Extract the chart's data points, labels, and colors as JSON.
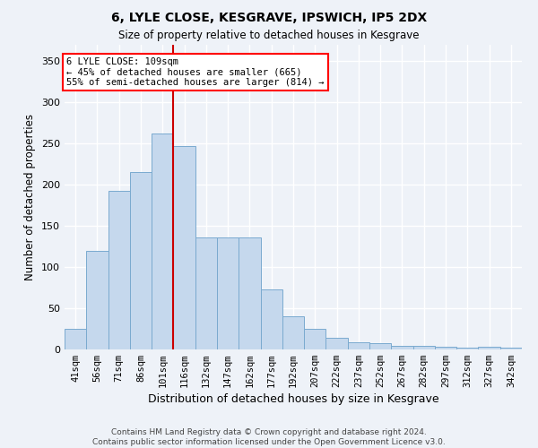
{
  "title1": "6, LYLE CLOSE, KESGRAVE, IPSWICH, IP5 2DX",
  "title2": "Size of property relative to detached houses in Kesgrave",
  "xlabel": "Distribution of detached houses by size in Kesgrave",
  "ylabel": "Number of detached properties",
  "categories": [
    "41sqm",
    "56sqm",
    "71sqm",
    "86sqm",
    "101sqm",
    "116sqm",
    "132sqm",
    "147sqm",
    "162sqm",
    "177sqm",
    "192sqm",
    "207sqm",
    "222sqm",
    "237sqm",
    "252sqm",
    "267sqm",
    "282sqm",
    "297sqm",
    "312sqm",
    "327sqm",
    "342sqm"
  ],
  "values": [
    25,
    120,
    193,
    215,
    262,
    247,
    136,
    136,
    136,
    73,
    40,
    25,
    14,
    9,
    8,
    4,
    4,
    3,
    2,
    3,
    2
  ],
  "bar_color": "#c5d8ed",
  "bar_edge_color": "#7aaacf",
  "annotation_box_text": "6 LYLE CLOSE: 109sqm\n← 45% of detached houses are smaller (665)\n55% of semi-detached houses are larger (814) →",
  "red_line_x": 4.5,
  "ylim": [
    0,
    370
  ],
  "yticks": [
    0,
    50,
    100,
    150,
    200,
    250,
    300,
    350
  ],
  "footer_line1": "Contains HM Land Registry data © Crown copyright and database right 2024.",
  "footer_line2": "Contains public sector information licensed under the Open Government Licence v3.0.",
  "background_color": "#eef2f8",
  "grid_color": "#dce6f0"
}
